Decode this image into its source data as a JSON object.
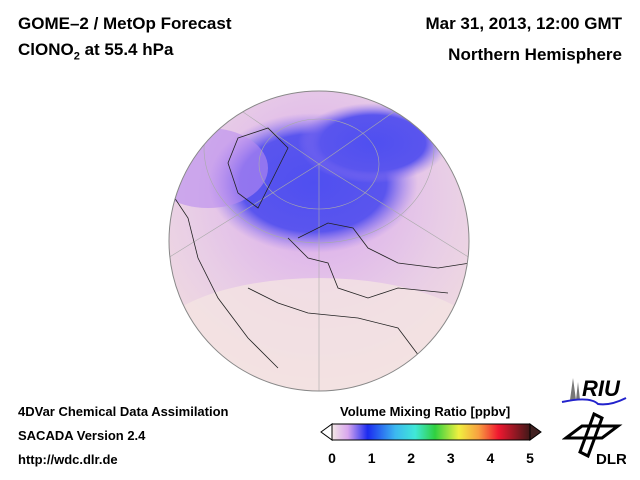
{
  "header": {
    "title": "GOME–2 / MetOp Forecast",
    "species": "ClONO",
    "species_sub": "2",
    "level": " at 55.4 hPa",
    "date": "Mar 31, 2013, 12:00 GMT",
    "region": "Northern Hemisphere"
  },
  "footer": {
    "line1": "4DVar Chemical Data Assimilation",
    "line2": "SACADA Version 2.4",
    "line3": "http://wdc.dlr.de"
  },
  "colorbar": {
    "title": "Volume Mixing Ratio [ppbv]",
    "ticks": [
      "0",
      "1",
      "2",
      "3",
      "4",
      "5"
    ],
    "min": 0,
    "max": 5
  },
  "logos": {
    "riu": "RIU",
    "dlr": "DLR"
  }
}
